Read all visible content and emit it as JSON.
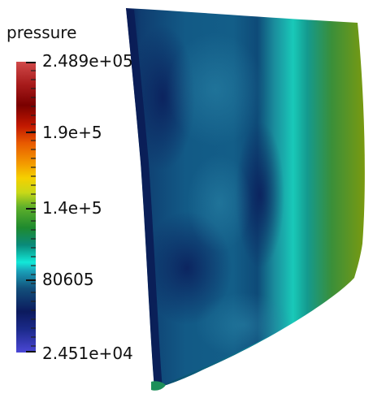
{
  "legend": {
    "title": "pressure",
    "labels": [
      "2.489e+05",
      "1.9e+5",
      "1.4e+5",
      "80605",
      "2.451e+04"
    ],
    "max": 248900,
    "min": 24510,
    "colormap": [
      "#4b47d6",
      "#1b2a8a",
      "#0c1a5e",
      "#124f7a",
      "#1aa0b8",
      "#12e8d8",
      "#0a8a7a",
      "#1f8a2e",
      "#5fb02a",
      "#c8d818",
      "#f5d000",
      "#f39a00",
      "#e85a00",
      "#c21800",
      "#7a0000",
      "#a61a1a",
      "#d14a4a"
    ]
  },
  "surface": {
    "field": "pressure"
  }
}
